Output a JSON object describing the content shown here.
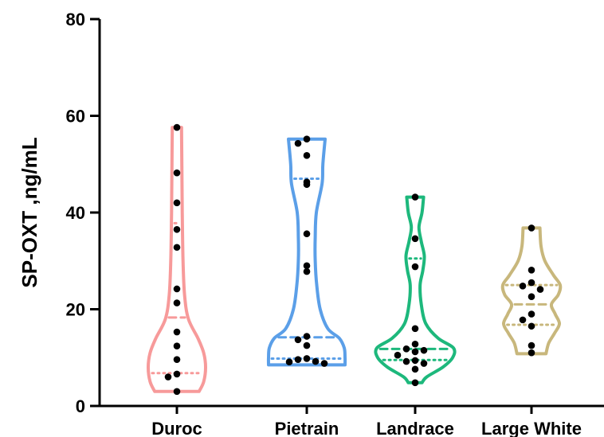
{
  "chart_data": {
    "type": "violin",
    "title": "",
    "xlabel": "",
    "ylabel": "SP-OXT ,ng/mL",
    "ylim": [
      0,
      80
    ],
    "yticks": [
      0,
      20,
      40,
      60,
      80
    ],
    "grid": false,
    "legend": "none",
    "categories": [
      "Duroc",
      "Pietrain",
      "Landrace",
      "Large White"
    ],
    "series": [
      {
        "category": "Duroc",
        "color": "#F79A9A",
        "min": 3.0,
        "max": 57.6,
        "median": 18.3,
        "q1": 6.8,
        "q3": 37.8,
        "points": [
          57.6,
          48.2,
          42.0,
          36.5,
          32.8,
          24.2,
          21.3,
          15.3,
          12.4,
          9.6,
          6.6,
          6.0,
          3.0
        ],
        "profile": [
          [
            3.0,
            0.58
          ],
          [
            5,
            0.7
          ],
          [
            8,
            0.75
          ],
          [
            11,
            0.7
          ],
          [
            14,
            0.55
          ],
          [
            18,
            0.3
          ],
          [
            23,
            0.2
          ],
          [
            30,
            0.16
          ],
          [
            40,
            0.14
          ],
          [
            50,
            0.13
          ],
          [
            57.6,
            0.12
          ]
        ]
      },
      {
        "category": "Pietrain",
        "color": "#5B9FE8",
        "min": 8.5,
        "max": 55.2,
        "median": 14.2,
        "q1": 9.8,
        "q3": 47.0,
        "points": [
          55.2,
          54.3,
          51.8,
          46.3,
          45.8,
          35.6,
          29.0,
          27.8,
          14.4,
          13.7,
          12.5,
          9.8,
          9.6,
          9.2,
          9.1,
          8.8
        ],
        "profile": [
          [
            8.5,
            1.0
          ],
          [
            10,
            1.0
          ],
          [
            12,
            0.98
          ],
          [
            14,
            0.85
          ],
          [
            16,
            0.55
          ],
          [
            20,
            0.35
          ],
          [
            25,
            0.26
          ],
          [
            30,
            0.22
          ],
          [
            35,
            0.22
          ],
          [
            40,
            0.25
          ],
          [
            46,
            0.4
          ],
          [
            50,
            0.42
          ],
          [
            55.2,
            0.48
          ]
        ]
      },
      {
        "category": "Landrace",
        "color": "#1DB87C",
        "min": 4.8,
        "max": 43.2,
        "median": 11.8,
        "q1": 9.5,
        "q3": 30.5,
        "points": [
          43.2,
          34.6,
          28.8,
          16.0,
          12.8,
          11.8,
          11.5,
          11.2,
          10.5,
          9.4,
          9.2,
          8.8,
          7.6,
          4.8
        ],
        "profile": [
          [
            4.8,
            0.18
          ],
          [
            6,
            0.3
          ],
          [
            8,
            0.72
          ],
          [
            10,
            0.98
          ],
          [
            12,
            1.0
          ],
          [
            14,
            0.6
          ],
          [
            17,
            0.28
          ],
          [
            21,
            0.16
          ],
          [
            25,
            0.13
          ],
          [
            28,
            0.2
          ],
          [
            31,
            0.24
          ],
          [
            34,
            0.16
          ],
          [
            37,
            0.1
          ],
          [
            40,
            0.18
          ],
          [
            43.2,
            0.22
          ]
        ]
      },
      {
        "category": "Large White",
        "color": "#C8B77C",
        "min": 10.8,
        "max": 36.8,
        "median": 21.0,
        "q1": 16.8,
        "q3": 25.0,
        "points": [
          36.8,
          28.1,
          25.5,
          24.8,
          24.1,
          22.6,
          19.0,
          17.8,
          16.5,
          12.5,
          11.0
        ],
        "profile": [
          [
            10.8,
            0.38
          ],
          [
            13,
            0.45
          ],
          [
            15,
            0.6
          ],
          [
            17,
            0.73
          ],
          [
            19,
            0.62
          ],
          [
            21,
            0.52
          ],
          [
            23,
            0.7
          ],
          [
            25,
            0.75
          ],
          [
            27,
            0.58
          ],
          [
            30,
            0.35
          ],
          [
            33,
            0.25
          ],
          [
            36.8,
            0.22
          ]
        ]
      }
    ]
  }
}
